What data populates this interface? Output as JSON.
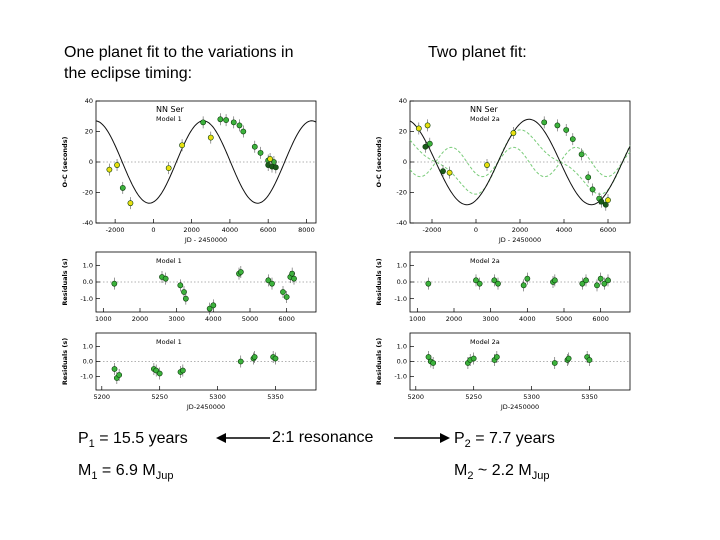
{
  "headings": {
    "left_line1": "One planet fit to the variations in",
    "left_line2": "the eclipse timing:",
    "right": "Two planet fit:"
  },
  "annotations": {
    "p1_main": "P",
    "p1_sub": "1",
    "p1_rest": " = 15.5 years",
    "m1_main": "M",
    "m1_sub": "1",
    "m1_rest": " = 6.9 M",
    "m1_unit_sub": "Jup",
    "resonance": "2:1 resonance",
    "p2_main": "P",
    "p2_sub": "2",
    "p2_rest": " = 7.7 years",
    "m2_main": "M",
    "m2_sub": "2",
    "m2_rest": " ~ 2.2 M",
    "m2_unit_sub": "Jup"
  },
  "colors": {
    "green_point": "#3cb23c",
    "yellow_point": "#e8e010",
    "dark_point": "#1a5a1a",
    "fit_green": "#7acc7a"
  },
  "chart_data": [
    {
      "id": "left-oc",
      "type": "scatter",
      "title": "NN Ser",
      "subtitle": "Model 1",
      "xlabel": "JD - 2450000",
      "ylabel": "O-C (seconds)",
      "xlim": [
        -3000,
        8500
      ],
      "ylim": [
        -40,
        40
      ],
      "xticks": [
        -2000,
        0,
        2000,
        4000,
        6000,
        8000
      ],
      "yticks": [
        -40,
        -20,
        0,
        20,
        40
      ],
      "fit": {
        "amplitude": 27,
        "period_days": 5660,
        "phase_x": 1200
      },
      "points_green": [
        [
          -1600,
          -17
        ],
        [
          2600,
          26
        ],
        [
          3500,
          28
        ],
        [
          3800,
          27.5
        ],
        [
          4200,
          26
        ],
        [
          4500,
          24
        ],
        [
          4700,
          20
        ],
        [
          5300,
          10
        ],
        [
          5600,
          6
        ],
        [
          6000,
          1
        ],
        [
          6300,
          0
        ]
      ],
      "points_dark": [
        [
          6000,
          -2
        ],
        [
          6200,
          -3
        ],
        [
          6400,
          -3.5
        ]
      ],
      "points_yellow": [
        [
          -2300,
          -5
        ],
        [
          -1900,
          -2
        ],
        [
          -1200,
          -27
        ],
        [
          800,
          -4
        ],
        [
          1500,
          11
        ],
        [
          3000,
          16
        ],
        [
          6100,
          2
        ]
      ]
    },
    {
      "id": "left-res1",
      "type": "scatter",
      "subtitle": "Model 1",
      "ylabel": "Residuals (s)",
      "xlim": [
        800,
        6800
      ],
      "ylim": [
        -1.8,
        1.8
      ],
      "xticks": [
        1000,
        2000,
        3000,
        4000,
        5000,
        6000
      ],
      "yticks": [
        -1.0,
        0.0,
        1.0
      ],
      "points_green": [
        [
          1300,
          -0.1
        ],
        [
          2600,
          0.3
        ],
        [
          2700,
          0.2
        ],
        [
          3100,
          -0.2
        ],
        [
          3200,
          -0.6
        ],
        [
          3250,
          -1.0
        ],
        [
          3900,
          -1.6
        ],
        [
          4000,
          -1.4
        ],
        [
          4700,
          0.5
        ],
        [
          4750,
          0.6
        ],
        [
          5500,
          0.1
        ],
        [
          5600,
          -0.1
        ],
        [
          5900,
          -0.6
        ],
        [
          6000,
          -0.9
        ],
        [
          6100,
          0.3
        ],
        [
          6150,
          0.5
        ],
        [
          6200,
          0.2
        ]
      ]
    },
    {
      "id": "left-res2",
      "type": "scatter",
      "subtitle": "Model 1",
      "xlabel": "JD-2450000",
      "ylabel": "Residuals (s)",
      "xlim": [
        5195,
        5385
      ],
      "ylim": [
        -1.9,
        1.9
      ],
      "xticks": [
        5200,
        5250,
        5300,
        5350
      ],
      "yticks": [
        -1.0,
        0.0,
        1.0
      ],
      "points_green": [
        [
          5211,
          -0.5
        ],
        [
          5213,
          -1.1
        ],
        [
          5215,
          -0.9
        ],
        [
          5245,
          -0.5
        ],
        [
          5247,
          -0.6
        ],
        [
          5250,
          -0.8
        ],
        [
          5268,
          -0.7
        ],
        [
          5270,
          -0.6
        ],
        [
          5320,
          0.0
        ],
        [
          5331,
          0.2
        ],
        [
          5332,
          0.3
        ],
        [
          5348,
          0.3
        ],
        [
          5350,
          0.2
        ]
      ]
    },
    {
      "id": "right-oc",
      "type": "scatter",
      "title": "NN Ser",
      "subtitle": "Model 2a",
      "xlabel": "JD - 2450000",
      "ylabel": "O-C (seconds)",
      "xlim": [
        -3000,
        7000
      ],
      "ylim": [
        -40,
        40
      ],
      "xticks": [
        -2000,
        0,
        2000,
        4000,
        6000
      ],
      "yticks": [
        -40,
        -20,
        0,
        20,
        40
      ],
      "fit": {
        "amplitude": 28,
        "period_days": 5660,
        "phase_x": 1000,
        "amplitude2": 6,
        "period2_days": 2830
      },
      "points_green": [
        [
          -2100,
          12
        ],
        [
          3100,
          26
        ],
        [
          3700,
          24
        ],
        [
          4100,
          21
        ],
        [
          4400,
          15
        ],
        [
          4800,
          5
        ],
        [
          5100,
          -10
        ],
        [
          5300,
          -18
        ],
        [
          5600,
          -24
        ]
      ],
      "points_dark": [
        [
          -2300,
          10
        ],
        [
          -1500,
          -6
        ],
        [
          5700,
          -26
        ],
        [
          5900,
          -28
        ]
      ],
      "points_yellow": [
        [
          -2600,
          22
        ],
        [
          -2200,
          24
        ],
        [
          -1200,
          -7
        ],
        [
          500,
          -2
        ],
        [
          1700,
          19
        ],
        [
          6000,
          -25
        ]
      ]
    },
    {
      "id": "right-res1",
      "type": "scatter",
      "subtitle": "Model 2a",
      "ylabel": "Residuals (s)",
      "xlim": [
        800,
        6800
      ],
      "ylim": [
        -1.8,
        1.8
      ],
      "xticks": [
        1000,
        2000,
        3000,
        4000,
        5000,
        6000
      ],
      "yticks": [
        -1.0,
        0.0,
        1.0
      ],
      "points_green": [
        [
          1300,
          -0.1
        ],
        [
          2600,
          0.1
        ],
        [
          2700,
          -0.1
        ],
        [
          3100,
          0.1
        ],
        [
          3200,
          -0.1
        ],
        [
          3900,
          -0.2
        ],
        [
          4000,
          0.2
        ],
        [
          4700,
          0.0
        ],
        [
          4750,
          0.1
        ],
        [
          5500,
          -0.1
        ],
        [
          5600,
          0.1
        ],
        [
          5900,
          -0.2
        ],
        [
          6000,
          0.2
        ],
        [
          6100,
          -0.1
        ],
        [
          6200,
          0.1
        ]
      ]
    },
    {
      "id": "right-res2",
      "type": "scatter",
      "subtitle": "Model 2a",
      "xlabel": "JD-2450000",
      "ylabel": "Residuals (s)",
      "xlim": [
        5195,
        5385
      ],
      "ylim": [
        -1.9,
        1.9
      ],
      "xticks": [
        5200,
        5250,
        5300,
        5350
      ],
      "yticks": [
        -1.0,
        0.0,
        1.0
      ],
      "points_green": [
        [
          5211,
          0.3
        ],
        [
          5213,
          0.0
        ],
        [
          5215,
          -0.1
        ],
        [
          5245,
          -0.1
        ],
        [
          5247,
          0.1
        ],
        [
          5250,
          0.2
        ],
        [
          5268,
          0.1
        ],
        [
          5270,
          0.3
        ],
        [
          5320,
          -0.1
        ],
        [
          5331,
          0.1
        ],
        [
          5332,
          0.2
        ],
        [
          5348,
          0.3
        ],
        [
          5350,
          0.1
        ]
      ]
    }
  ]
}
